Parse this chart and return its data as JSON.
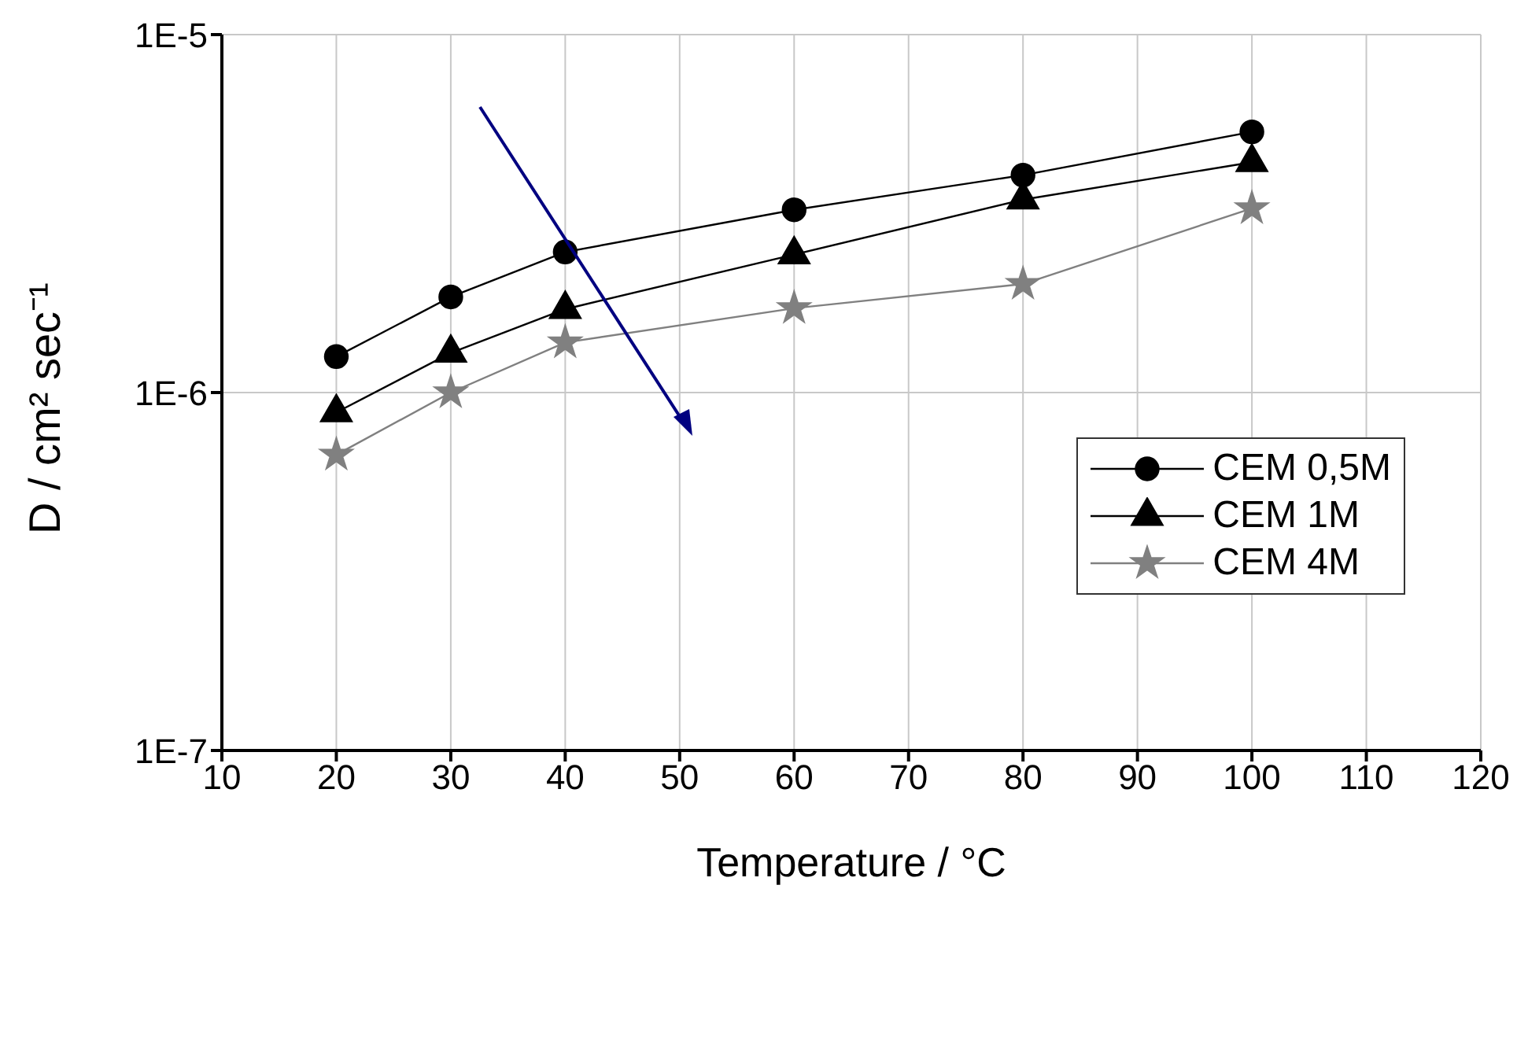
{
  "chart_data": {
    "type": "line",
    "xlabel": "Temperature / °C",
    "ylabel": "D / cm² sec⁻¹",
    "log": "y",
    "x": [
      20,
      30,
      40,
      60,
      80,
      100
    ],
    "xlim": [
      10,
      120
    ],
    "xticks": [
      10,
      20,
      30,
      40,
      50,
      60,
      70,
      80,
      90,
      100,
      110,
      120
    ],
    "ylim": [
      1e-07,
      1e-05
    ],
    "yticks": [
      {
        "value": 1e-07,
        "label": "1E-7"
      },
      {
        "value": 1e-06,
        "label": "1E-6"
      },
      {
        "value": 1e-05,
        "label": "1E-5"
      }
    ],
    "grid": true,
    "legend": "right",
    "series": [
      {
        "name": "CEM 0,5M",
        "color": "#000000",
        "marker": "circle",
        "values": [
          1.26e-06,
          1.85e-06,
          2.47e-06,
          3.24e-06,
          4.05e-06,
          5.35e-06
        ]
      },
      {
        "name": "CEM 1M",
        "color": "#000000",
        "marker": "triangle",
        "values": [
          8.8e-07,
          1.29e-06,
          1.71e-06,
          2.43e-06,
          3.46e-06,
          4.4e-06
        ]
      },
      {
        "name": "CEM 4M",
        "color": "#808080",
        "marker": "star",
        "values": [
          6.7e-07,
          1e-06,
          1.38e-06,
          1.72e-06,
          2.01e-06,
          3.27e-06
        ]
      }
    ]
  }
}
